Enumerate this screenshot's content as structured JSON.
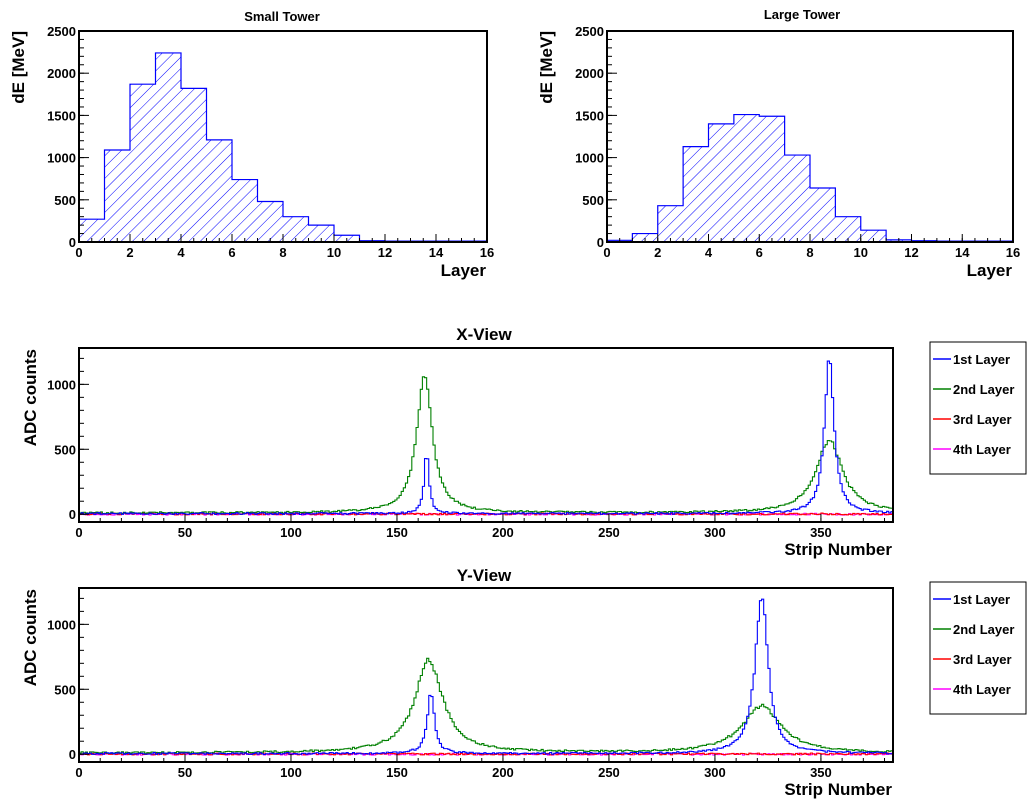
{
  "chart_data": [
    {
      "type": "bar",
      "title": "Small Tower",
      "xlabel": "Layer",
      "ylabel": "dE [MeV]",
      "xlim": [
        0,
        16
      ],
      "ylim": [
        0,
        2500
      ],
      "xticks": [
        "0",
        "2",
        "4",
        "6",
        "8",
        "10",
        "12",
        "14",
        "16"
      ],
      "yticks": [
        "0",
        "500",
        "1000",
        "1500",
        "2000",
        "2500"
      ],
      "categories": [
        "0",
        "1",
        "2",
        "3",
        "4",
        "5",
        "6",
        "7",
        "8",
        "9",
        "10",
        "11",
        "12",
        "13",
        "14",
        "15"
      ],
      "values": [
        270,
        1090,
        1870,
        2240,
        1820,
        1210,
        740,
        480,
        300,
        200,
        80,
        15,
        10,
        10,
        10,
        10
      ],
      "color": "#0000ff",
      "fill": "hatched"
    },
    {
      "type": "bar",
      "title": "Large Tower",
      "xlabel": "Layer",
      "ylabel": "dE [MeV]",
      "xlim": [
        0,
        16
      ],
      "ylim": [
        0,
        2500
      ],
      "xticks": [
        "0",
        "2",
        "4",
        "6",
        "8",
        "10",
        "12",
        "14",
        "16"
      ],
      "yticks": [
        "0",
        "500",
        "1000",
        "1500",
        "2000",
        "2500"
      ],
      "categories": [
        "0",
        "1",
        "2",
        "3",
        "4",
        "5",
        "6",
        "7",
        "8",
        "9",
        "10",
        "11",
        "12",
        "13",
        "14",
        "15"
      ],
      "values": [
        20,
        100,
        430,
        1130,
        1400,
        1510,
        1490,
        1030,
        640,
        300,
        140,
        25,
        15,
        10,
        10,
        10
      ],
      "color": "#0000ff",
      "fill": "hatched"
    },
    {
      "type": "line",
      "title": "X-View",
      "xlabel": "Strip Number",
      "ylabel": "ADC counts",
      "xlim": [
        0,
        384
      ],
      "ylim": [
        -60,
        1280
      ],
      "xticks": [
        "0",
        "50",
        "100",
        "150",
        "200",
        "250",
        "300",
        "350"
      ],
      "yticks": [
        "0",
        "500",
        "1000"
      ],
      "legend": "right",
      "series": [
        {
          "name": "1st Layer",
          "color": "#0000ff",
          "baseline": 5,
          "peaks": [
            [
              164,
              500,
              1.3
            ],
            [
              354,
              1220,
              2.6
            ]
          ]
        },
        {
          "name": "2nd Layer",
          "color": "#008000",
          "baseline": 10,
          "peaks": [
            [
              163,
              1040,
              4.5
            ],
            [
              354,
              560,
              7.5
            ]
          ]
        },
        {
          "name": "3rd Layer",
          "color": "#ff0000",
          "baseline": 2,
          "peaks": []
        },
        {
          "name": "4th Layer",
          "color": "#ff00ff",
          "baseline": 0,
          "peaks": []
        }
      ]
    },
    {
      "type": "line",
      "title": "Y-View",
      "xlabel": "Strip Number",
      "ylabel": "ADC counts",
      "xlim": [
        0,
        384
      ],
      "ylim": [
        -60,
        1280
      ],
      "xticks": [
        "0",
        "50",
        "100",
        "150",
        "200",
        "250",
        "300",
        "350"
      ],
      "yticks": [
        "0",
        "500",
        "1000"
      ],
      "legend": "right",
      "series": [
        {
          "name": "1st Layer",
          "color": "#0000ff",
          "baseline": 5,
          "peaks": [
            [
              166,
              470,
              2.0
            ],
            [
              322,
              1230,
              3.6
            ]
          ]
        },
        {
          "name": "2nd Layer",
          "color": "#008000",
          "baseline": 10,
          "peaks": [
            [
              165,
              710,
              8.0
            ],
            [
              322,
              360,
              11.0
            ]
          ]
        },
        {
          "name": "3rd Layer",
          "color": "#ff0000",
          "baseline": 2,
          "peaks": []
        },
        {
          "name": "4th Layer",
          "color": "#ff00ff",
          "baseline": 0,
          "peaks": []
        }
      ]
    }
  ]
}
